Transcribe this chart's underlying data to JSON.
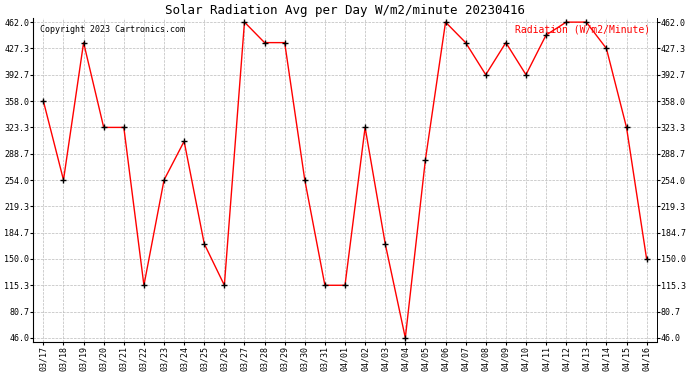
{
  "title": "Solar Radiation Avg per Day W/m2/minute 20230416",
  "copyright": "Copyright 2023 Cartronics.com",
  "legend_label": "Radiation (W/m2/Minute)",
  "dates": [
    "03/17",
    "03/18",
    "03/19",
    "03/20",
    "03/21",
    "03/22",
    "03/23",
    "03/24",
    "03/25",
    "03/26",
    "03/27",
    "03/28",
    "03/29",
    "03/30",
    "03/31",
    "04/01",
    "04/02",
    "04/03",
    "04/04",
    "04/05",
    "04/06",
    "04/07",
    "04/08",
    "04/09",
    "04/10",
    "04/11",
    "04/12",
    "04/13",
    "04/14",
    "04/15",
    "04/16"
  ],
  "values": [
    358.0,
    254.0,
    435.0,
    323.3,
    323.3,
    115.3,
    254.0,
    305.0,
    170.0,
    115.3,
    462.0,
    435.0,
    435.0,
    254.0,
    115.3,
    115.3,
    323.3,
    170.0,
    46.0,
    281.0,
    462.0,
    435.0,
    392.7,
    435.0,
    392.7,
    445.0,
    462.0,
    462.0,
    427.3,
    323.3,
    150.0
  ],
  "ylim_min": 46.0,
  "ylim_max": 462.0,
  "yticks": [
    46.0,
    80.7,
    115.3,
    150.0,
    184.7,
    219.3,
    254.0,
    288.7,
    323.3,
    358.0,
    392.7,
    427.3,
    462.0
  ],
  "line_color": "red",
  "marker": "+",
  "marker_color": "black",
  "bg_color": "white",
  "grid_color": "#bbbbbb",
  "title_fontsize": 9,
  "tick_fontsize": 6,
  "legend_color": "red",
  "copyright_color": "black",
  "copyright_fontsize": 6,
  "legend_fontsize": 7
}
